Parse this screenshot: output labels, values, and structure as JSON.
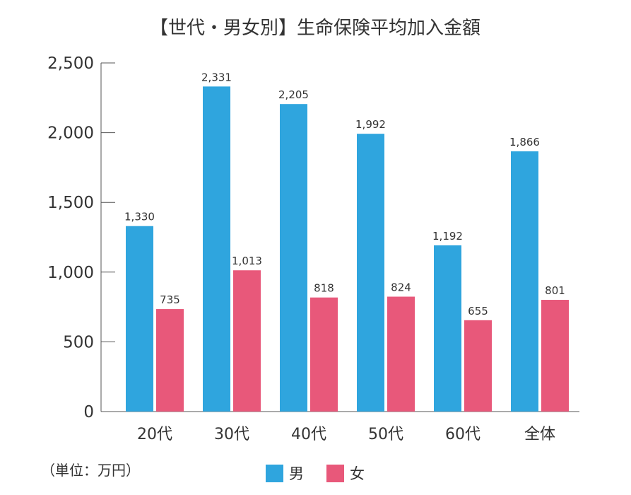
{
  "chart_data": {
    "type": "bar",
    "title": "【世代・男女別】生命保険平均加入金額",
    "unit_note": "（単位：万円）",
    "categories": [
      "20代",
      "30代",
      "40代",
      "50代",
      "60代",
      "全体"
    ],
    "series": [
      {
        "name": "男",
        "color": "#2fa5de",
        "values": [
          1330,
          2331,
          2205,
          1992,
          1192,
          1866
        ],
        "labels": [
          "1,330",
          "2,331",
          "2,205",
          "1,992",
          "1,192",
          "1,866"
        ]
      },
      {
        "name": "女",
        "color": "#e8587a",
        "values": [
          735,
          1013,
          818,
          824,
          655,
          801
        ],
        "labels": [
          "735",
          "1,013",
          "818",
          "824",
          "655",
          "801"
        ]
      }
    ],
    "ylim": [
      0,
      2500
    ],
    "yticks": [
      0,
      500,
      1000,
      1500,
      2000,
      2500
    ],
    "ytick_labels": [
      "0",
      "500",
      "1,000",
      "1,500",
      "2,000",
      "2,500"
    ],
    "grid": false,
    "legend": "bottom-center"
  }
}
